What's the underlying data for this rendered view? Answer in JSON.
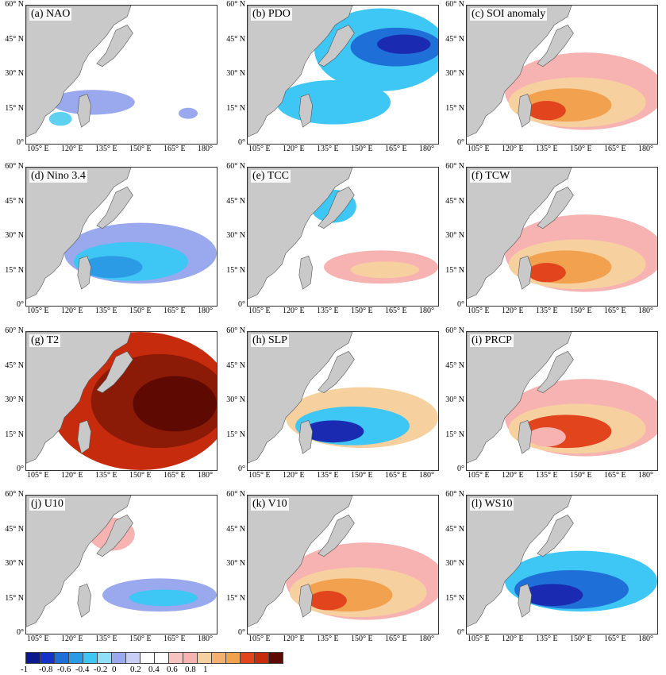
{
  "latitude_ticks": [
    "0°",
    "15° N",
    "30° N",
    "45° N",
    "60° N"
  ],
  "longitude_ticks": [
    "105° E",
    "120° E",
    "135° E",
    "150° E",
    "165° E",
    "180°"
  ],
  "panels": [
    {
      "label": "(a) NAO",
      "signal": "weak-negative",
      "colors": [
        "#9aa8ee",
        "#5ed0f0"
      ]
    },
    {
      "label": "(b) PDO",
      "signal": "strong-negative",
      "colors": [
        "#3ec6f4",
        "#1f6fd8",
        "#1a2bb2"
      ]
    },
    {
      "label": "(c) SOI anomaly",
      "signal": "positive",
      "colors": [
        "#f7b3b1",
        "#f7d0a0",
        "#f2a14f",
        "#e2451e",
        "#1a2bb2"
      ]
    },
    {
      "label": "(d) Nino 3.4",
      "signal": "negative",
      "colors": [
        "#9aa8ee",
        "#3ec6f4",
        "#2c9be6"
      ]
    },
    {
      "label": "(e) TCC",
      "signal": "mixed",
      "colors": [
        "#3ec6f4",
        "#f7b3b1",
        "#f7d0a0"
      ]
    },
    {
      "label": "(f) TCW",
      "signal": "positive",
      "colors": [
        "#f7b3b1",
        "#f7d0a0",
        "#f2a14f",
        "#e2451e"
      ]
    },
    {
      "label": "(g) T2",
      "signal": "strong-positive",
      "colors": [
        "#c62b0e",
        "#8b1a06",
        "#5e0a02"
      ]
    },
    {
      "label": "(h) SLP",
      "signal": "negative",
      "colors": [
        "#f7d0a0",
        "#3ec6f4",
        "#1a2bb2"
      ]
    },
    {
      "label": "(i) PRCP",
      "signal": "positive",
      "colors": [
        "#f7b3b1",
        "#f7d0a0",
        "#e2451e"
      ]
    },
    {
      "label": "(j) U10",
      "signal": "mixed",
      "colors": [
        "#f7b3b1",
        "#9aa8ee",
        "#3ec6f4"
      ]
    },
    {
      "label": "(k) V10",
      "signal": "positive",
      "colors": [
        "#f7b3b1",
        "#f7d0a0",
        "#f2a14f",
        "#e2451e"
      ]
    },
    {
      "label": "(l) WS10",
      "signal": "negative",
      "colors": [
        "#3ec6f4",
        "#1f6fd8",
        "#1a2bb2"
      ]
    }
  ],
  "colorbar": {
    "labels": [
      "-1",
      "-0.8",
      "-0.6",
      "-0.4",
      "-0.2",
      "0",
      "0.2",
      "0.4",
      "0.6",
      "0.8",
      "1"
    ],
    "colors": [
      "#0b1a8a",
      "#1533c9",
      "#1f6fd8",
      "#2c9be6",
      "#3ec6f4",
      "#8fe0f7",
      "#9aa8ee",
      "#c8cef6",
      "#ffffff",
      "#ffffff",
      "#f7c3c0",
      "#f7b3b1",
      "#f7d0a0",
      "#f4b070",
      "#f2a14f",
      "#e2451e",
      "#c62b0e",
      "#5e0a02"
    ]
  }
}
